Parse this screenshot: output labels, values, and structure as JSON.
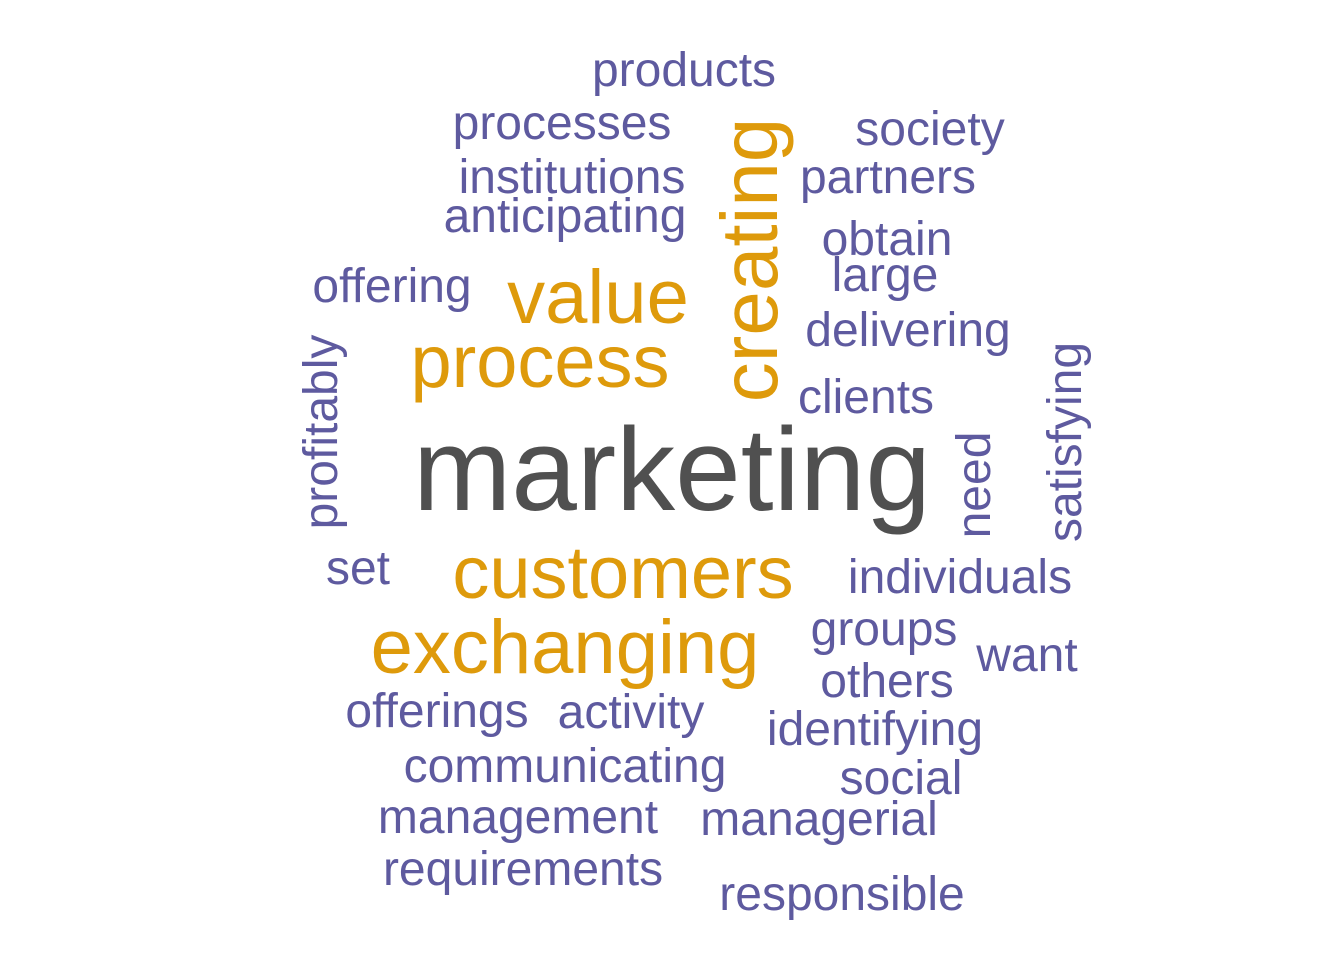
{
  "colors": {
    "dark": "#505050",
    "gold": "#DE9A0B",
    "purple": "#5E5A9F"
  },
  "words": {
    "marketing": "marketing",
    "creating": "creating",
    "value": "value",
    "process": "process",
    "customers": "customers",
    "exchanging": "exchanging",
    "products": "products",
    "processes": "processes",
    "society": "society",
    "institutions": "institutions",
    "partners": "partners",
    "anticipating": "anticipating",
    "obtain": "obtain",
    "large": "large",
    "offering": "offering",
    "delivering": "delivering",
    "profitably": "profitably",
    "satisfying": "satisfying",
    "clients": "clients",
    "need": "need",
    "set": "set",
    "individuals": "individuals",
    "groups": "groups",
    "want": "want",
    "others": "others",
    "offerings": "offerings",
    "activity": "activity",
    "identifying": "identifying",
    "communicating": "communicating",
    "social": "social",
    "management": "management",
    "managerial": "managerial",
    "requirements": "requirements",
    "responsible": "responsible"
  }
}
